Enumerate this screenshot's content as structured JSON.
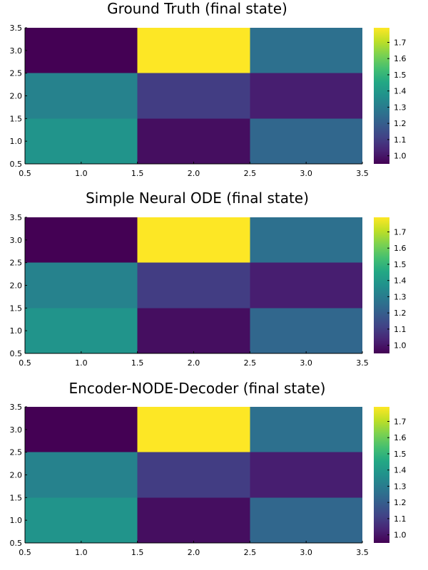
{
  "chart_data": [
    {
      "type": "heatmap",
      "title": "Ground Truth (final state)",
      "x": [
        1,
        2,
        3
      ],
      "y": [
        1,
        2,
        3
      ],
      "values": [
        [
          1.38,
          0.98,
          1.23
        ],
        [
          1.32,
          1.1,
          1.02
        ],
        [
          0.95,
          1.79,
          1.26
        ]
      ],
      "xlim": [
        0.5,
        3.5
      ],
      "ylim": [
        0.5,
        3.5
      ],
      "xticks": [
        "0.5",
        "1.0",
        "1.5",
        "2.0",
        "2.5",
        "3.0",
        "3.5"
      ],
      "yticks": [
        "0.5",
        "1.0",
        "1.5",
        "2.0",
        "2.5",
        "3.0",
        "3.5"
      ],
      "colorbar": {
        "colormap": "viridis",
        "range": [
          0.95,
          1.79
        ],
        "ticks": [
          "1.0",
          "1.1",
          "1.2",
          "1.3",
          "1.4",
          "1.5",
          "1.6",
          "1.7"
        ]
      },
      "grid": false
    },
    {
      "type": "heatmap",
      "title": "Simple Neural ODE (final state)",
      "x": [
        1,
        2,
        3
      ],
      "y": [
        1,
        2,
        3
      ],
      "values": [
        [
          1.38,
          0.98,
          1.23
        ],
        [
          1.32,
          1.1,
          1.02
        ],
        [
          0.95,
          1.79,
          1.26
        ]
      ],
      "xlim": [
        0.5,
        3.5
      ],
      "ylim": [
        0.5,
        3.5
      ],
      "xticks": [
        "0.5",
        "1.0",
        "1.5",
        "2.0",
        "2.5",
        "3.0",
        "3.5"
      ],
      "yticks": [
        "0.5",
        "1.0",
        "1.5",
        "2.0",
        "2.5",
        "3.0",
        "3.5"
      ],
      "colorbar": {
        "colormap": "viridis",
        "range": [
          0.95,
          1.79
        ],
        "ticks": [
          "1.0",
          "1.1",
          "1.2",
          "1.3",
          "1.4",
          "1.5",
          "1.6",
          "1.7"
        ]
      },
      "grid": false
    },
    {
      "type": "heatmap",
      "title": "Encoder-NODE-Decoder (final state)",
      "x": [
        1,
        2,
        3
      ],
      "y": [
        1,
        2,
        3
      ],
      "values": [
        [
          1.38,
          0.98,
          1.23
        ],
        [
          1.32,
          1.1,
          1.02
        ],
        [
          0.95,
          1.79,
          1.26
        ]
      ],
      "xlim": [
        0.5,
        3.5
      ],
      "ylim": [
        0.5,
        3.5
      ],
      "xticks": [
        "0.5",
        "1.0",
        "1.5",
        "2.0",
        "2.5",
        "3.0",
        "3.5"
      ],
      "yticks": [
        "0.5",
        "1.0",
        "1.5",
        "2.0",
        "2.5",
        "3.0",
        "3.5"
      ],
      "colorbar": {
        "colormap": "viridis",
        "range": [
          0.95,
          1.79
        ],
        "ticks": [
          "1.0",
          "1.1",
          "1.2",
          "1.3",
          "1.4",
          "1.5",
          "1.6",
          "1.7"
        ]
      },
      "grid": false
    }
  ]
}
